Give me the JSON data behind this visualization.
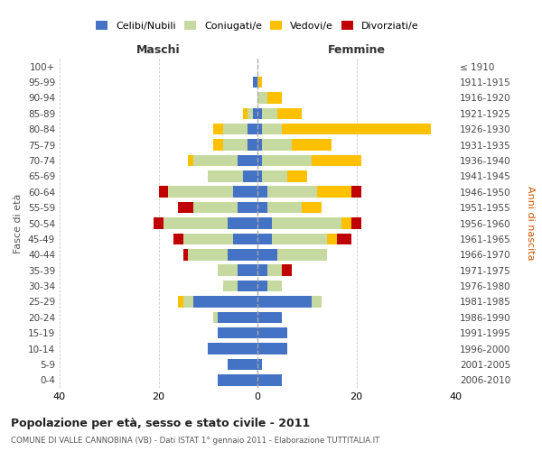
{
  "age_groups": [
    "0-4",
    "5-9",
    "10-14",
    "15-19",
    "20-24",
    "25-29",
    "30-34",
    "35-39",
    "40-44",
    "45-49",
    "50-54",
    "55-59",
    "60-64",
    "65-69",
    "70-74",
    "75-79",
    "80-84",
    "85-89",
    "90-94",
    "95-99",
    "100+"
  ],
  "birth_years": [
    "2006-2010",
    "2001-2005",
    "1996-2000",
    "1991-1995",
    "1986-1990",
    "1981-1985",
    "1976-1980",
    "1971-1975",
    "1966-1970",
    "1961-1965",
    "1956-1960",
    "1951-1955",
    "1946-1950",
    "1941-1945",
    "1936-1940",
    "1931-1935",
    "1926-1930",
    "1921-1925",
    "1916-1920",
    "1911-1915",
    "≤ 1910"
  ],
  "maschi_celibi": [
    8,
    6,
    10,
    8,
    8,
    13,
    4,
    4,
    6,
    5,
    6,
    4,
    5,
    3,
    4,
    2,
    2,
    1,
    0,
    1,
    0
  ],
  "maschi_coniugati": [
    0,
    0,
    0,
    0,
    1,
    2,
    3,
    4,
    8,
    10,
    13,
    9,
    13,
    7,
    9,
    5,
    5,
    1,
    0,
    0,
    0
  ],
  "maschi_vedovi": [
    0,
    0,
    0,
    0,
    0,
    1,
    0,
    0,
    0,
    0,
    0,
    0,
    0,
    0,
    1,
    2,
    2,
    1,
    0,
    0,
    0
  ],
  "maschi_divorziati": [
    0,
    0,
    0,
    0,
    0,
    0,
    0,
    0,
    1,
    2,
    2,
    3,
    2,
    0,
    0,
    0,
    0,
    0,
    0,
    0,
    0
  ],
  "femmine_celibi": [
    5,
    1,
    6,
    6,
    5,
    11,
    2,
    2,
    4,
    3,
    3,
    2,
    2,
    1,
    1,
    1,
    1,
    1,
    0,
    0,
    0
  ],
  "femmine_coniugati": [
    0,
    0,
    0,
    0,
    0,
    2,
    3,
    3,
    10,
    11,
    14,
    7,
    10,
    5,
    10,
    6,
    4,
    3,
    2,
    0,
    0
  ],
  "femmine_vedovi": [
    0,
    0,
    0,
    0,
    0,
    0,
    0,
    0,
    0,
    2,
    2,
    4,
    7,
    4,
    10,
    8,
    30,
    5,
    3,
    1,
    0
  ],
  "femmine_divorziati": [
    0,
    0,
    0,
    0,
    0,
    0,
    0,
    2,
    0,
    3,
    2,
    0,
    2,
    0,
    0,
    0,
    0,
    0,
    0,
    0,
    0
  ],
  "colors": {
    "celibi": "#4472c4",
    "coniugati": "#c5d9a0",
    "vedovi": "#ffc000",
    "divorziati": "#c00000"
  },
  "title": "Popolazione per età, sesso e stato civile - 2011",
  "subtitle": "COMUNE DI VALLE CANNOBINA (VB) - Dati ISTAT 1° gennaio 2011 - Elaborazione TUTTITALIA.IT",
  "ylabel": "Fasce di età",
  "ylabel2": "Anni di nascita",
  "xlabel_left": "Maschi",
  "xlabel_right": "Femmine",
  "xlim": 40,
  "legend_labels": [
    "Celibi/Nubili",
    "Coniugati/e",
    "Vedovi/e",
    "Divorziati/e"
  ],
  "background_color": "#ffffff"
}
